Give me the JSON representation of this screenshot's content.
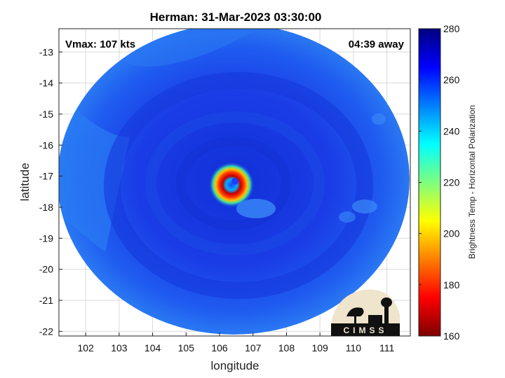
{
  "chart_data": {
    "type": "heatmap",
    "title": "Herman: 31-Mar-2023 03:30:00",
    "xlabel": "longitude",
    "ylabel": "latitude",
    "xlim": [
      101.2,
      111.7
    ],
    "ylim": [
      -22.15,
      -12.25
    ],
    "x_ticks": [
      "102",
      "103",
      "104",
      "105",
      "106",
      "107",
      "108",
      "109",
      "110",
      "111"
    ],
    "y_ticks": [
      "-13",
      "-14",
      "-15",
      "-16",
      "-17",
      "-18",
      "-19",
      "-20",
      "-21",
      "-22"
    ],
    "grid": true,
    "annotations": {
      "left": "Vmax: 107 kts",
      "right": "04:39 away"
    },
    "storm_center": {
      "lon": 106.5,
      "lat": -17.15
    },
    "colorbar": {
      "label": "Brightness Temp - Horizontal Polarization",
      "min": 160,
      "max": 280,
      "ticks": [
        "280",
        "260",
        "240",
        "220",
        "200",
        "180",
        "160"
      ],
      "colormap": [
        "#7f0000",
        "#ff0000",
        "#ff7f00",
        "#ffff00",
        "#7fff7f",
        "#00ffff",
        "#007fff",
        "#0000ff",
        "#00007f"
      ]
    },
    "logo_text": "CIMSS"
  }
}
